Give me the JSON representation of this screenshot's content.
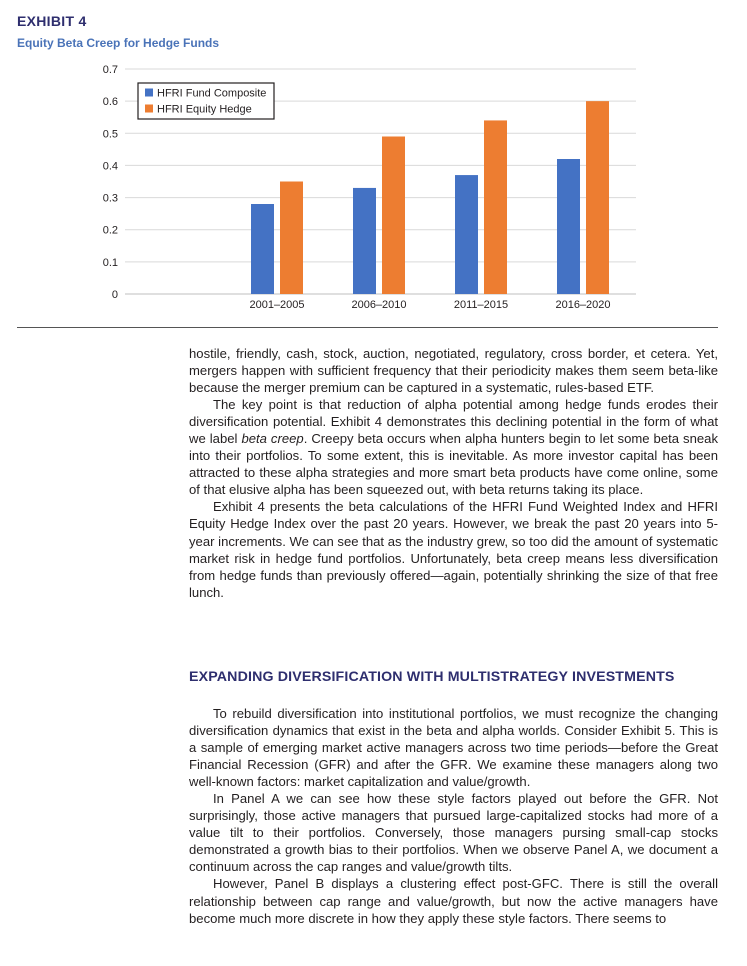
{
  "exhibit": {
    "label": "EXHIBIT 4",
    "title": "Equity Beta Creep for Hedge Funds"
  },
  "chart_data": {
    "type": "bar",
    "categories": [
      "2001–2005",
      "2006–2010",
      "2011–2015",
      "2016–2020"
    ],
    "series": [
      {
        "name": "HFRI Fund Composite",
        "color": "#4472c4",
        "values": [
          0.28,
          0.33,
          0.37,
          0.42
        ]
      },
      {
        "name": "HFRI Equity Hedge",
        "color": "#ed7d31",
        "values": [
          0.35,
          0.49,
          0.54,
          0.6
        ]
      }
    ],
    "ylim": [
      0,
      0.7
    ],
    "yticks": [
      "0",
      "0.1",
      "0.2",
      "0.3",
      "0.4",
      "0.5",
      "0.6",
      "0.7"
    ],
    "xlabel": "",
    "ylabel": "",
    "grid": true,
    "legend_position": "top-left"
  },
  "body": {
    "p1_line1": "hostile, friendly, cash, stock, auction, negotiated, regulatory, cross border, et cetera. Yet, mergers happen with sufficient frequency that their periodicity makes them seem beta-like because the merger premium can be captured in a systematic, rules-based ETF.",
    "p2_before": "The key point is that reduction of alpha potential among hedge funds erodes their diversification potential. Exhibit 4 demonstrates this declining potential in the form of what we label ",
    "p2_italic": "beta creep",
    "p2_after": ". Creepy beta occurs when alpha hunters begin to let some beta sneak into their portfolios. To some extent, this is inevitable. As more investor capital has been attracted to these alpha strategies and more smart beta products have come online, some of that elusive alpha has been squeezed out, with beta returns taking its place.",
    "p3": "Exhibit 4 presents the beta calculations of the HFRI Fund Weighted Index and HFRI Equity Hedge Index over the past 20 years. However, we break the past 20 years into 5-year increments. We can see that as the industry grew, so too did the amount of systematic market risk in hedge fund portfolios. Unfortunately, beta creep means less diversification from hedge funds than previously offered—again, potentially shrinking the size of that free lunch.",
    "heading": "EXPANDING DIVERSIFICATION WITH MULTISTRATEGY INVESTMENTS",
    "p4": "To rebuild diversification into institutional portfolios, we must recognize the changing diversification dynamics that exist in the beta and alpha worlds. Consider Exhibit 5. This is a sample of emerging market active managers across two time periods—before the Great Financial Recession (GFR) and after the GFR. We examine these managers along two well-known factors: market capitalization and value/growth.",
    "p5": "In Panel A we can see how these style factors played out before the GFR. Not surprisingly, those active managers that pursued large-capitalized stocks had more of a value tilt to their portfolios. Conversely, those managers pursing small-cap stocks demonstrated a growth bias to their portfolios. When we observe Panel A, we document a continuum across the cap ranges and value/growth tilts.",
    "p6": "However, Panel B displays a clustering effect post-GFC. There is still the overall relationship between cap range and value/growth, but now the active managers have become much more discrete in how they apply these style factors. There seems to"
  }
}
